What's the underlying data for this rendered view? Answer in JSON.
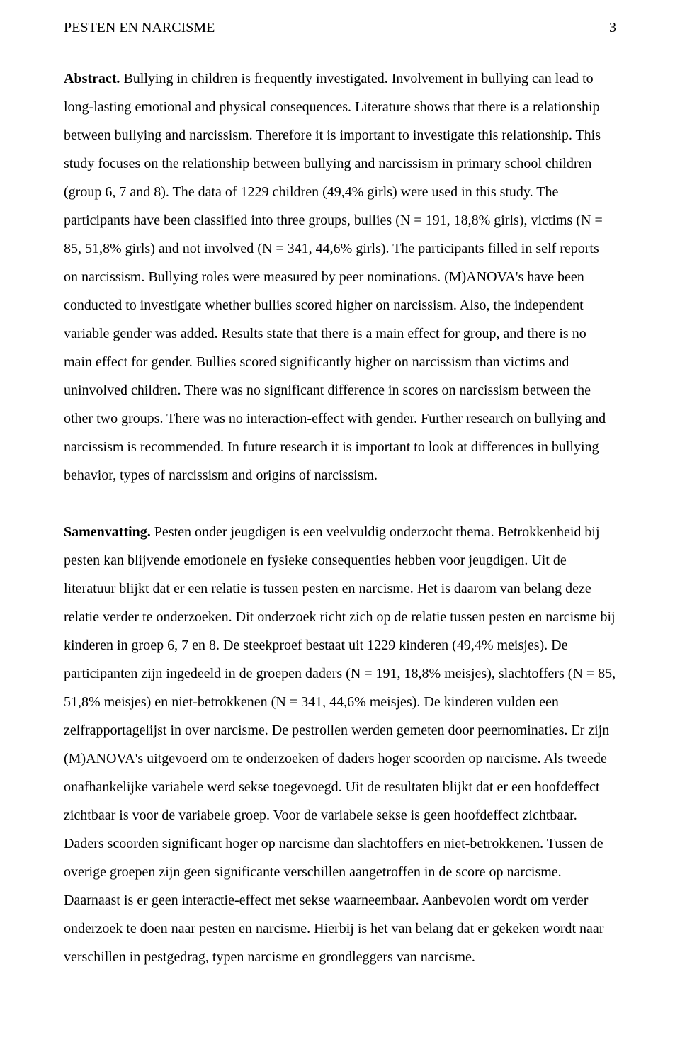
{
  "colors": {
    "background": "#ffffff",
    "text": "#000000"
  },
  "typography": {
    "family": "Times New Roman",
    "body_size_pt": 15,
    "line_height": 2.0
  },
  "header": {
    "running_title": "PESTEN EN NARCISME",
    "page_number": "3"
  },
  "abstract": {
    "heading": "Abstract.",
    "body": " Bullying in children is frequently investigated. Involvement in bullying can lead to long-lasting emotional and physical consequences. Literature shows that there is a relationship between bullying and narcissism. Therefore it is important to investigate this relationship. This study focuses on the relationship between bullying and narcissism in primary school children (group 6, 7 and 8). The data of 1229 children (49,4% girls) were used in this study. The participants have been classified into three groups, bullies (N = 191, 18,8% girls), victims (N = 85, 51,8% girls) and not involved (N = 341, 44,6% girls). The participants filled in self reports on narcissism. Bullying roles were measured by peer nominations. (M)ANOVA's have been conducted to investigate whether bullies scored higher on narcissism. Also, the independent variable gender was added. Results state that there is a main effect for group, and there is no main effect for gender. Bullies scored significantly higher on narcissism than victims and uninvolved children. There was no significant difference in scores on narcissism between the other two groups. There was no interaction-effect with gender. Further research on bullying and narcissism is recommended. In future research it is important to look at differences in bullying behavior, types of narcissism and origins of narcissism."
  },
  "samenvatting": {
    "heading": "Samenvatting.",
    "body": " Pesten onder jeugdigen is een veelvuldig onderzocht thema. Betrokkenheid bij pesten kan blijvende emotionele en fysieke consequenties hebben voor jeugdigen. Uit de literatuur blijkt dat er een relatie is tussen pesten en narcisme. Het is daarom van belang deze relatie verder te onderzoeken. Dit onderzoek richt zich op de relatie tussen pesten en narcisme bij kinderen in groep 6, 7 en 8. De steekproef bestaat uit 1229 kinderen (49,4% meisjes). De participanten zijn ingedeeld in de groepen daders (N = 191, 18,8% meisjes), slachtoffers (N = 85, 51,8% meisjes) en niet-betrokkenen (N = 341, 44,6% meisjes). De kinderen vulden een zelfrapportagelijst in over narcisme. De pestrollen werden gemeten door peernominaties. Er zijn (M)ANOVA's uitgevoerd om te onderzoeken of daders hoger scoorden op narcisme. Als tweede onafhankelijke variabele werd sekse toegevoegd. Uit de resultaten blijkt dat er een hoofdeffect zichtbaar is voor de variabele groep. Voor de variabele sekse is geen hoofdeffect zichtbaar. Daders scoorden significant hoger op narcisme dan slachtoffers en niet-betrokkenen. Tussen de overige groepen zijn geen significante verschillen aangetroffen in de score op narcisme. Daarnaast is er geen interactie-effect met sekse waarneembaar. Aanbevolen wordt om verder onderzoek te doen naar pesten en narcisme. Hierbij is het van belang dat er gekeken wordt naar verschillen in pestgedrag, typen narcisme en grondleggers van narcisme."
  }
}
